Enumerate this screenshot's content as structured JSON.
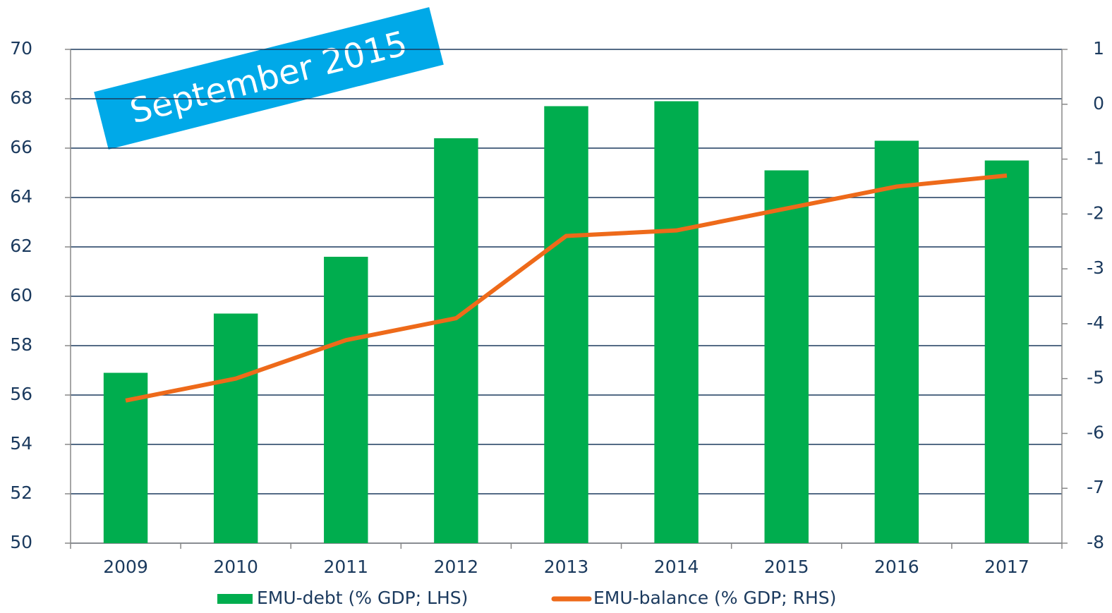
{
  "chart_data": {
    "type": "bar_line",
    "annotation": "September 2015",
    "categories": [
      "2009",
      "2010",
      "2011",
      "2012",
      "2013",
      "2014",
      "2015",
      "2016",
      "2017"
    ],
    "series": [
      {
        "name": "EMU-debt (% GDP; LHS)",
        "type": "bar",
        "color": "#00ad4e",
        "axis": "y",
        "values": [
          56.9,
          59.3,
          61.6,
          66.4,
          67.7,
          67.9,
          65.1,
          66.3,
          65.5
        ]
      },
      {
        "name": "EMU-balance (% GDP; RHS)",
        "type": "line",
        "color": "#ee6a1a",
        "axis": "y2",
        "values": [
          -5.4,
          -5.0,
          -4.3,
          -3.9,
          -2.4,
          -2.3,
          -1.9,
          -1.5,
          -1.3
        ]
      }
    ],
    "ylim": [
      50,
      70
    ],
    "yticks": [
      50,
      52,
      54,
      56,
      58,
      60,
      62,
      64,
      66,
      68,
      70
    ],
    "y2lim": [
      -8,
      1
    ],
    "y2ticks": [
      -8,
      -7,
      -6,
      -5,
      -4,
      -3,
      -2,
      -1,
      0,
      1
    ],
    "grid": true,
    "legend": "bottom"
  }
}
